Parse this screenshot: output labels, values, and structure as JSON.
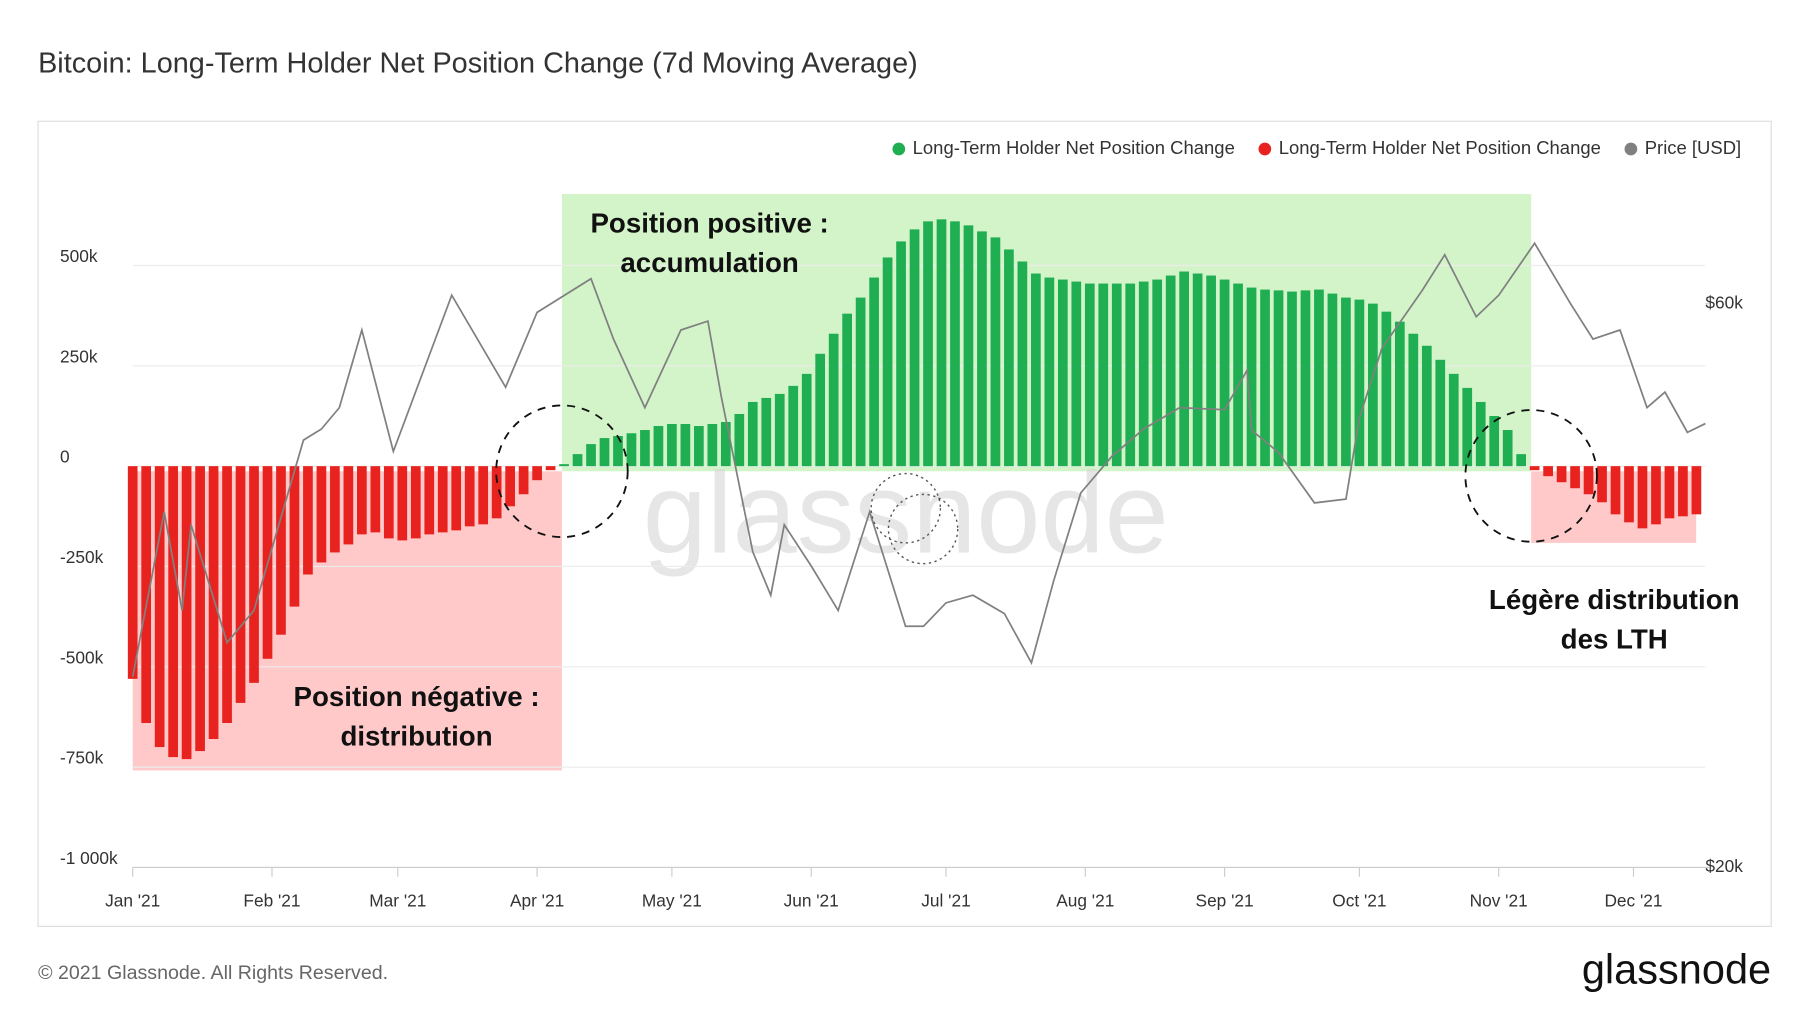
{
  "chart_data": {
    "type": "bar",
    "title": "Bitcoin: Long-Term Holder Net Position Change (7d Moving Average)",
    "watermark": "glassnode",
    "footer": "© 2021 Glassnode. All Rights Reserved.",
    "logo": "glassnode",
    "annotations": [
      [
        "Position positive :",
        "accumulation"
      ],
      [
        "Position négative :",
        "distribution"
      ],
      [
        "Légère distribution",
        "des LTH"
      ]
    ],
    "xlim": [
      0,
      350
    ],
    "xticks": [
      {
        "value": 0,
        "label": "Jan '21"
      },
      {
        "value": 31,
        "label": "Feb '21"
      },
      {
        "value": 59,
        "label": "Mar '21"
      },
      {
        "value": 90,
        "label": "Apr '21"
      },
      {
        "value": 120,
        "label": "May '21"
      },
      {
        "value": 151,
        "label": "Jun '21"
      },
      {
        "value": 181,
        "label": "Jul '21"
      },
      {
        "value": 212,
        "label": "Aug '21"
      },
      {
        "value": 243,
        "label": "Sep '21"
      },
      {
        "value": 273,
        "label": "Oct '21"
      },
      {
        "value": 304,
        "label": "Nov '21"
      },
      {
        "value": 334,
        "label": "Dec '21"
      }
    ],
    "ylim": [
      -1000000,
      750000
    ],
    "yticks": [
      {
        "value": 500000,
        "label": "500k"
      },
      {
        "value": 250000,
        "label": "250k"
      },
      0,
      {
        "value": -250000,
        "label": "-250k"
      },
      {
        "value": -500000,
        "label": "-500k"
      },
      {
        "value": -750000,
        "label": "-750k"
      },
      {
        "value": -1000000,
        "label": "-1 000k"
      }
    ],
    "y2lim": [
      20000,
      78600
    ],
    "y2log": true,
    "y2ticks": [
      {
        "value": 60000,
        "label": "$60k"
      },
      {
        "value": 20000,
        "label": "$20k"
      }
    ],
    "grid": true,
    "legend": "top-right",
    "series": [
      {
        "name": "Long-Term Holder Net Position Change",
        "color": "#1fae52",
        "x": [
          96,
          99,
          102,
          105,
          108,
          111,
          114,
          117,
          120,
          123,
          126,
          129,
          132,
          135,
          138,
          141,
          144,
          147,
          150,
          153,
          156,
          159,
          162,
          165,
          168,
          171,
          174,
          177,
          180,
          183,
          186,
          189,
          192,
          195,
          198,
          201,
          204,
          207,
          210,
          213,
          216,
          219,
          222,
          225,
          228,
          231,
          234,
          237,
          240,
          243,
          246,
          249,
          252,
          255,
          258,
          261,
          264,
          267,
          270,
          273,
          276,
          279,
          282,
          285,
          288,
          291,
          294,
          297,
          300,
          303,
          306,
          309
        ],
        "values": [
          5000,
          30000,
          55000,
          70000,
          75000,
          82000,
          90000,
          100000,
          105000,
          105000,
          100000,
          105000,
          110000,
          130000,
          160000,
          170000,
          180000,
          200000,
          230000,
          280000,
          330000,
          380000,
          420000,
          470000,
          520000,
          560000,
          590000,
          610000,
          615000,
          610000,
          600000,
          585000,
          570000,
          540000,
          510000,
          480000,
          470000,
          465000,
          460000,
          455000,
          455000,
          455000,
          455000,
          460000,
          465000,
          475000,
          485000,
          480000,
          475000,
          465000,
          455000,
          445000,
          440000,
          438000,
          435000,
          438000,
          440000,
          430000,
          420000,
          415000,
          405000,
          385000,
          360000,
          330000,
          300000,
          265000,
          230000,
          195000,
          160000,
          125000,
          90000,
          30000
        ]
      },
      {
        "name": "Long-Term Holder Net Position Change",
        "color": "#e8231f",
        "x": [
          0,
          3,
          6,
          9,
          12,
          15,
          18,
          21,
          24,
          27,
          30,
          33,
          36,
          39,
          42,
          45,
          48,
          51,
          54,
          57,
          60,
          63,
          66,
          69,
          72,
          75,
          78,
          81,
          84,
          87,
          90,
          93,
          312,
          315,
          318,
          321,
          324,
          327,
          330,
          333,
          336,
          339,
          342,
          345,
          348
        ],
        "values": [
          -530000,
          -640000,
          -700000,
          -725000,
          -730000,
          -710000,
          -680000,
          -640000,
          -590000,
          -540000,
          -480000,
          -420000,
          -350000,
          -270000,
          -240000,
          -215000,
          -195000,
          -170000,
          -165000,
          -180000,
          -185000,
          -180000,
          -170000,
          -165000,
          -160000,
          -150000,
          -145000,
          -130000,
          -100000,
          -70000,
          -35000,
          -10000,
          -10000,
          -25000,
          -40000,
          -55000,
          -70000,
          -90000,
          -120000,
          -140000,
          -155000,
          -145000,
          -130000,
          -125000,
          -120000
        ]
      },
      {
        "name": "Price [USD]",
        "color": "#808080",
        "type": "line",
        "axis": "y2",
        "x": [
          0,
          7,
          11,
          13,
          21,
          27,
          38,
          42,
          46,
          51,
          58,
          71,
          83,
          90,
          102,
          107,
          114,
          122,
          128,
          131,
          138,
          142,
          145,
          151,
          157,
          164,
          172,
          176,
          181,
          187,
          194,
          200,
          205,
          211,
          218,
          225,
          233,
          243,
          248,
          249,
          255,
          263,
          270,
          273,
          278,
          287,
          292,
          299,
          304,
          312,
          320,
          325,
          331,
          337,
          341,
          346,
          350
        ],
        "values": [
          29000,
          40000,
          33000,
          39000,
          31000,
          33000,
          46000,
          47000,
          49000,
          57000,
          45000,
          61000,
          51000,
          59000,
          63000,
          56000,
          49000,
          57000,
          58000,
          50000,
          37000,
          34000,
          39000,
          36000,
          33000,
          40000,
          32000,
          32000,
          33500,
          34000,
          32800,
          29800,
          35000,
          41500,
          44600,
          47000,
          49000,
          48800,
          52700,
          46900,
          44900,
          40700,
          41000,
          48000,
          55000,
          61600,
          66000,
          58500,
          61000,
          67500,
          60000,
          56000,
          57000,
          49000,
          50500,
          46700,
          47500
        ]
      }
    ]
  }
}
